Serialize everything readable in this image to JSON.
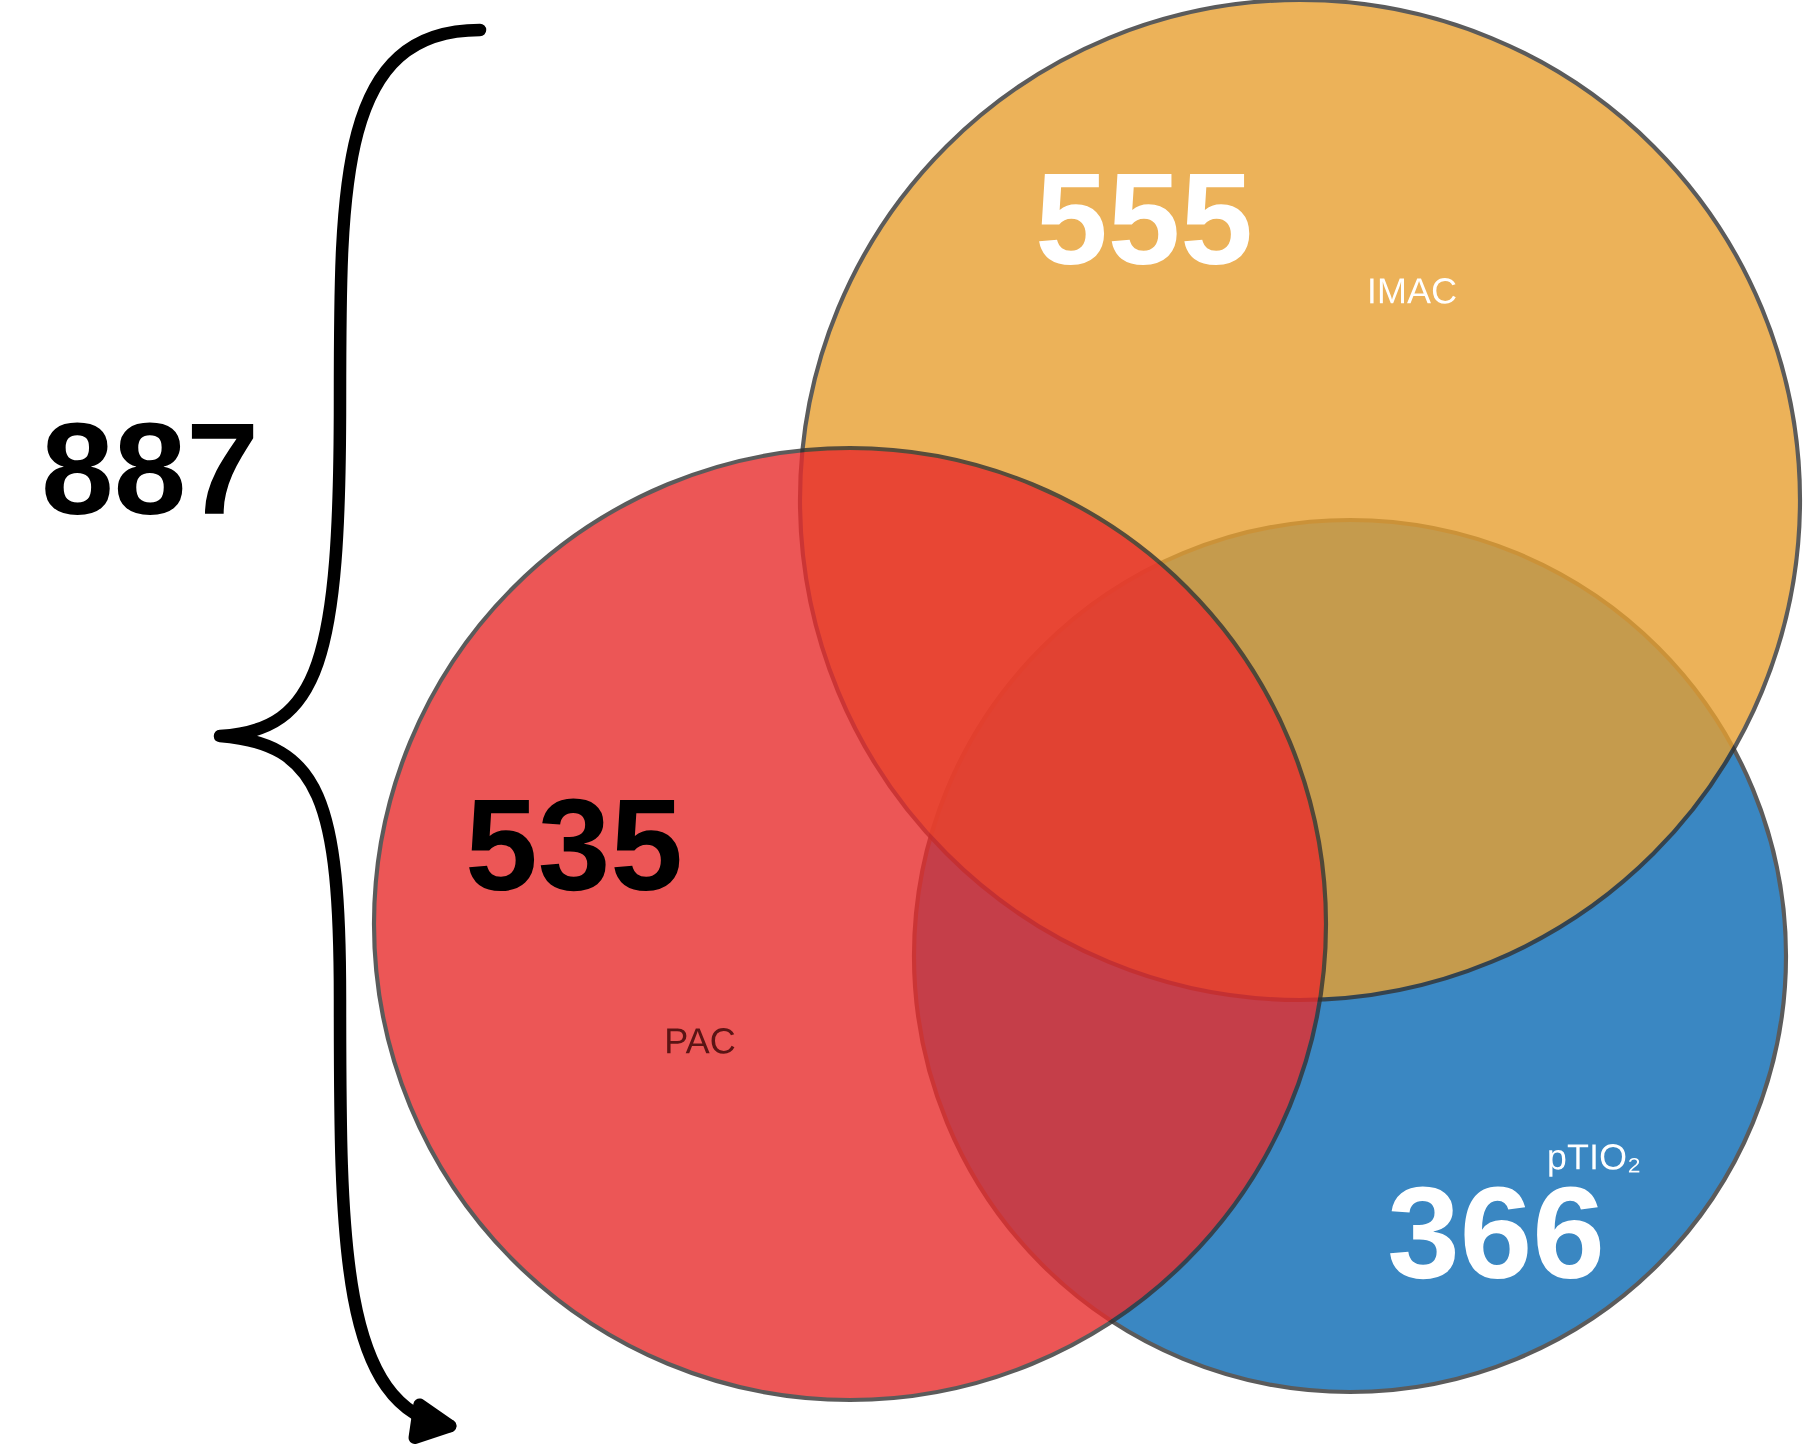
{
  "chart_data": {
    "type": "other",
    "categories": [
      "IMAC",
      "PAC",
      "pTIO₂"
    ],
    "values": [
      555,
      535,
      366
    ],
    "data_labels": true,
    "colors": [
      "#e8a030",
      "#e82c2c",
      "#0a6ab4"
    ],
    "annotations": [
      "887"
    ]
  }
}
